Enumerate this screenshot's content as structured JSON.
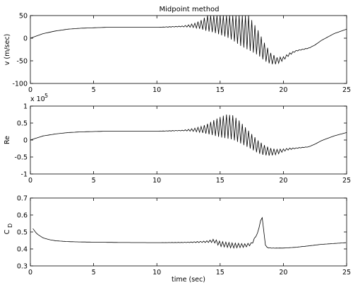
{
  "chart_data": [
    {
      "type": "line",
      "title": "Midpoint method",
      "xlabel": "",
      "ylabel": "v (m/sec)",
      "xlim": [
        0,
        25
      ],
      "ylim": [
        -100,
        50
      ],
      "xticks": [
        "0",
        "5",
        "10",
        "15",
        "20",
        "25"
      ],
      "yticks": [
        "-100",
        "-50",
        "0",
        "50"
      ],
      "ytick_values": [
        -100,
        -50,
        0,
        50
      ],
      "exponent_label": "",
      "grid": false,
      "series": [
        {
          "x": [
            0,
            1,
            2,
            3,
            4,
            5,
            6,
            8,
            10,
            11,
            12,
            12.5,
            13,
            13.5,
            14,
            14.5,
            15,
            15.5,
            16,
            16.5,
            17,
            17.5,
            18,
            18.5,
            19,
            19.5,
            20,
            20.5,
            21,
            22,
            22.5,
            23,
            24,
            25
          ],
          "y": [
            0,
            10,
            16,
            20,
            22,
            23,
            24,
            24,
            24,
            25,
            26,
            27,
            28,
            30,
            33,
            40,
            45,
            50,
            48,
            35,
            20,
            5,
            -10,
            -30,
            -45,
            -50,
            -45,
            -35,
            -28,
            -22,
            -15,
            -5,
            10,
            20
          ],
          "oscillation": [
            0,
            0,
            0,
            0,
            0,
            0,
            0,
            0,
            0,
            1,
            2,
            5,
            10,
            20,
            35,
            55,
            75,
            95,
            105,
            100,
            85,
            70,
            55,
            40,
            25,
            15,
            8,
            5,
            2,
            1,
            0,
            0,
            0,
            0
          ]
        }
      ]
    },
    {
      "type": "line",
      "title": "",
      "xlabel": "",
      "ylabel": "Re",
      "xlim": [
        0,
        25
      ],
      "ylim": [
        -1,
        1
      ],
      "xticks": [
        "0",
        "5",
        "10",
        "15",
        "20",
        "25"
      ],
      "yticks": [
        "-1",
        "-0.5",
        "0",
        "0.5",
        "1"
      ],
      "ytick_values": [
        -1,
        -0.5,
        0,
        0.5,
        1
      ],
      "exponent_label": "x 10",
      "exponent_power": "5",
      "grid": false,
      "series": [
        {
          "x": [
            0,
            1,
            2,
            3,
            4,
            5,
            6,
            8,
            10,
            11,
            12,
            12.5,
            13,
            13.5,
            14,
            14.5,
            15,
            15.5,
            16,
            16.5,
            17,
            17.5,
            18,
            18.5,
            19,
            19.5,
            20,
            20.5,
            21,
            22,
            22.5,
            23,
            24,
            25
          ],
          "y": [
            0,
            0.12,
            0.18,
            0.22,
            0.24,
            0.25,
            0.26,
            0.26,
            0.26,
            0.27,
            0.28,
            0.29,
            0.3,
            0.31,
            0.33,
            0.36,
            0.38,
            0.4,
            0.37,
            0.25,
            0.1,
            -0.05,
            -0.2,
            -0.3,
            -0.35,
            -0.35,
            -0.3,
            -0.26,
            -0.24,
            -0.2,
            -0.12,
            -0.02,
            0.12,
            0.22
          ],
          "oscillation": [
            0,
            0,
            0,
            0,
            0,
            0,
            0,
            0,
            0,
            0.01,
            0.02,
            0.05,
            0.1,
            0.18,
            0.3,
            0.45,
            0.6,
            0.7,
            0.72,
            0.65,
            0.55,
            0.45,
            0.38,
            0.3,
            0.22,
            0.15,
            0.08,
            0.05,
            0.02,
            0.01,
            0,
            0,
            0,
            0
          ]
        }
      ]
    },
    {
      "type": "line",
      "title": "",
      "xlabel": "time (sec)",
      "ylabel": "C",
      "ylabel_subscript": "D",
      "xlim": [
        0,
        25
      ],
      "ylim": [
        0.3,
        0.7
      ],
      "xticks": [
        "0",
        "5",
        "10",
        "15",
        "20",
        "25"
      ],
      "yticks": [
        "0.3",
        "0.4",
        "0.5",
        "0.6",
        "0.7"
      ],
      "ytick_values": [
        0.3,
        0.4,
        0.5,
        0.6,
        0.7
      ],
      "exponent_label": "",
      "grid": false,
      "series": [
        {
          "x": [
            0.2,
            0.5,
            1,
            1.5,
            2,
            3,
            4,
            5,
            7,
            10,
            12,
            13,
            14,
            14.5,
            15,
            15.5,
            16,
            16.5,
            17,
            17.5,
            18,
            18.3,
            18.6,
            19,
            20,
            21,
            22,
            23,
            24,
            25
          ],
          "y": [
            0.52,
            0.49,
            0.465,
            0.455,
            0.448,
            0.443,
            0.441,
            0.44,
            0.438,
            0.437,
            0.438,
            0.44,
            0.443,
            0.448,
            0.43,
            0.425,
            0.42,
            0.42,
            0.42,
            0.43,
            0.5,
            0.6,
            0.41,
            0.405,
            0.405,
            0.41,
            0.418,
            0.427,
            0.432,
            0.437
          ],
          "oscillation": [
            0,
            0,
            0,
            0,
            0,
            0,
            0,
            0,
            0,
            0,
            0.002,
            0.005,
            0.01,
            0.02,
            0.03,
            0.03,
            0.03,
            0.025,
            0.02,
            0.015,
            0,
            0,
            0.005,
            0.002,
            0,
            0,
            0,
            0,
            0,
            0
          ]
        }
      ]
    }
  ]
}
